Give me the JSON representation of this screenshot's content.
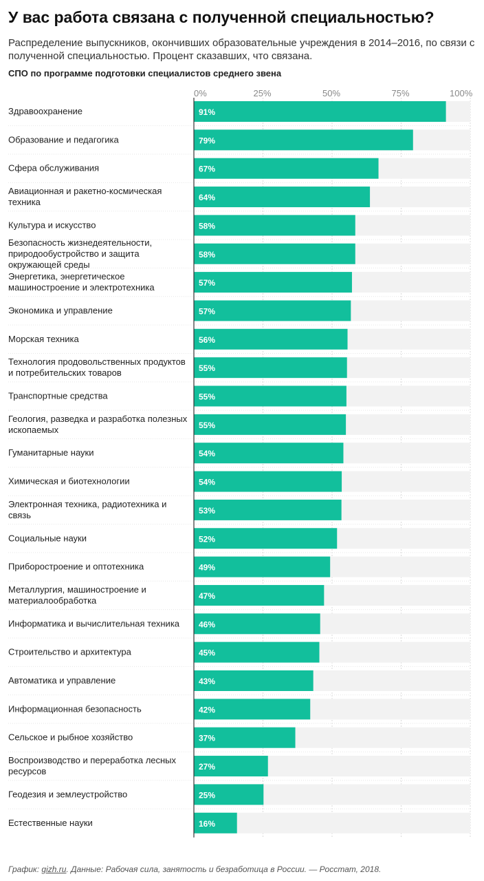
{
  "title": "У вас работа связана с полученной специальностью?",
  "subtitle": "Распределение выпускников, окончивших образовательные учреждения в 2014–2016, по связи с полученной специальностью. Процент сказавших, что связана.",
  "section_label": "СПО по программе подготовки специалистов среднего звена",
  "footer": {
    "prefix": "График: ",
    "link": "gizh.ru",
    "rest": ". Данные: Рабочая сила, занятость и безработица в России. — Росстат, 2018."
  },
  "colors": {
    "bar": "#12bf9c",
    "track": "#f2f2f2",
    "grid": "#d9d9d9"
  },
  "chart_data": {
    "type": "bar",
    "orientation": "horizontal",
    "xlim": [
      0,
      100
    ],
    "tick_labels": [
      "0%",
      "25%",
      "50%",
      "75%",
      "100%"
    ],
    "ticks": [
      0,
      25,
      50,
      75,
      100
    ],
    "categories": [
      [
        "Здравоохранение"
      ],
      [
        "Образование и педагогика"
      ],
      [
        "Сфера обслуживания"
      ],
      [
        "Авиационная и ракетно-космическая",
        "техника"
      ],
      [
        "Культура и искусство"
      ],
      [
        "Безопасность жизнедеятельности,",
        "природообустройство и защита",
        "окружающей среды"
      ],
      [
        "Энергетика, энергетическое",
        "машиностроение и электротехника"
      ],
      [
        "Экономика и управление"
      ],
      [
        "Морская техника"
      ],
      [
        "Технология продовольственных продуктов",
        "и потребительских товаров"
      ],
      [
        "Транспортные средства"
      ],
      [
        "Геология, разведка и разработка полезных",
        "ископаемых"
      ],
      [
        "Гуманитарные науки"
      ],
      [
        "Химическая и биотехнологии"
      ],
      [
        "Электронная техника, радиотехника и",
        "связь"
      ],
      [
        "Социальные науки"
      ],
      [
        "Приборостроение и оптотехника"
      ],
      [
        "Металлургия, машиностроение и",
        "материалообработка"
      ],
      [
        "Информатика и вычислительная техника"
      ],
      [
        "Строительство и архитектура"
      ],
      [
        "Автоматика и управление"
      ],
      [
        "Информационная безопасность"
      ],
      [
        "Сельское и рыбное хозяйство"
      ],
      [
        "Воспроизводство и переработка лесных",
        "ресурсов"
      ],
      [
        "Геодезия и землеустройство"
      ],
      [
        "Естественные науки"
      ]
    ],
    "values": [
      91.2,
      79.3,
      66.8,
      63.7,
      58.4,
      58.4,
      57.2,
      56.8,
      55.6,
      55.4,
      55.2,
      55.0,
      54.1,
      53.5,
      53.4,
      51.8,
      49.3,
      47.1,
      45.7,
      45.4,
      43.2,
      42.1,
      36.7,
      26.8,
      25.2,
      15.6
    ],
    "value_labels": [
      "91%",
      "79%",
      "67%",
      "64%",
      "58%",
      "58%",
      "57%",
      "57%",
      "56%",
      "55%",
      "55%",
      "55%",
      "54%",
      "54%",
      "53%",
      "52%",
      "49%",
      "47%",
      "46%",
      "45%",
      "43%",
      "42%",
      "37%",
      "27%",
      "25%",
      "16%"
    ]
  }
}
